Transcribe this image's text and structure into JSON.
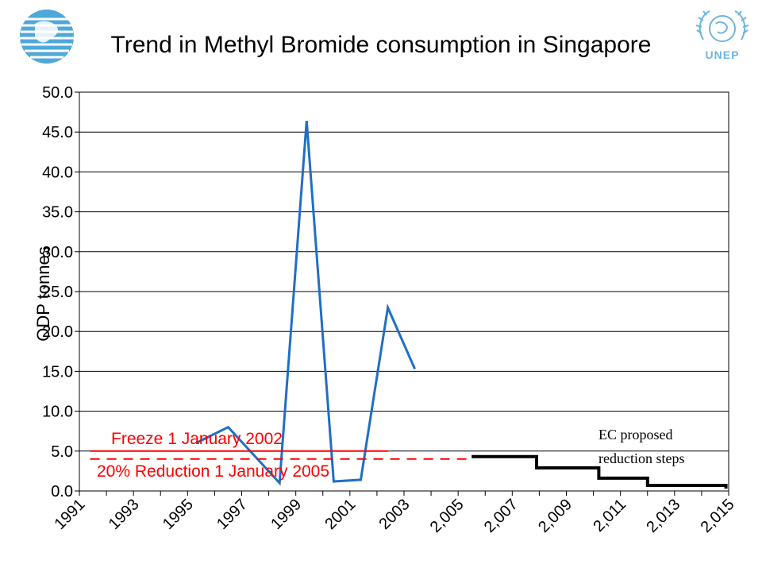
{
  "title": "Trend in Methyl Bromide consumption in Singapore",
  "logos": {
    "right_text": "UNEP"
  },
  "colors": {
    "consumption": "#1f6fc7",
    "freeze": "#ff0000",
    "reduction": "#ff0000",
    "ec_steps": "#000000",
    "grid": "#000000"
  },
  "chart_data": {
    "type": "line",
    "title": "Trend in Methyl Bromide consumption in Singapore",
    "ylabel": "ODP tonnes",
    "xlabel": "",
    "ylim": [
      0,
      50
    ],
    "y_ticks": [
      "0.0",
      "5.0",
      "10.0",
      "15.0",
      "20.0",
      "25.0",
      "30.0",
      "35.0",
      "40.0",
      "45.0",
      "50.0"
    ],
    "x_tick_labels": [
      "1991",
      "1993",
      "1995",
      "1997",
      "1999",
      "2001",
      "2003",
      "2,005",
      "2,007",
      "2,009",
      "2,011",
      "2,013",
      "2,015"
    ],
    "x_range": [
      1991,
      2015
    ],
    "grid": true,
    "series": [
      {
        "x": [
          1995.3,
          1996.5,
          1998.4,
          1999.4,
          2000.4,
          2001.4,
          2002.4,
          2003.4
        ],
        "y": [
          6.0,
          8.0,
          1.0,
          46.4,
          1.2,
          1.4,
          23.0,
          15.3
        ]
      },
      {
        "name": "Freeze 1 January 2002",
        "x": [
          1991.4,
          2002.4
        ],
        "y": [
          5.0,
          5.0
        ]
      },
      {
        "name": "20% Reduction 1 January 2005",
        "x": [
          1991.4,
          2005.5
        ],
        "y": [
          4.0,
          4.0
        ]
      },
      {
        "name": "EC proposed reduction steps",
        "x": [
          2005.5,
          2007.9,
          2007.9,
          2010.2,
          2010.2,
          2012.0,
          2012.0,
          2014.9,
          2014.9
        ],
        "y": [
          4.3,
          4.3,
          2.9,
          2.9,
          1.6,
          1.6,
          0.7,
          0.7,
          0.3
        ]
      }
    ],
    "annotations": [
      {
        "text": "Freeze 1 January 2002",
        "color": "#ff0000"
      },
      {
        "text": "20% Reduction 1 January 2005",
        "color": "#ff0000"
      },
      {
        "lines": [
          "EC proposed",
          "reduction steps"
        ],
        "color": "#000000"
      }
    ]
  }
}
